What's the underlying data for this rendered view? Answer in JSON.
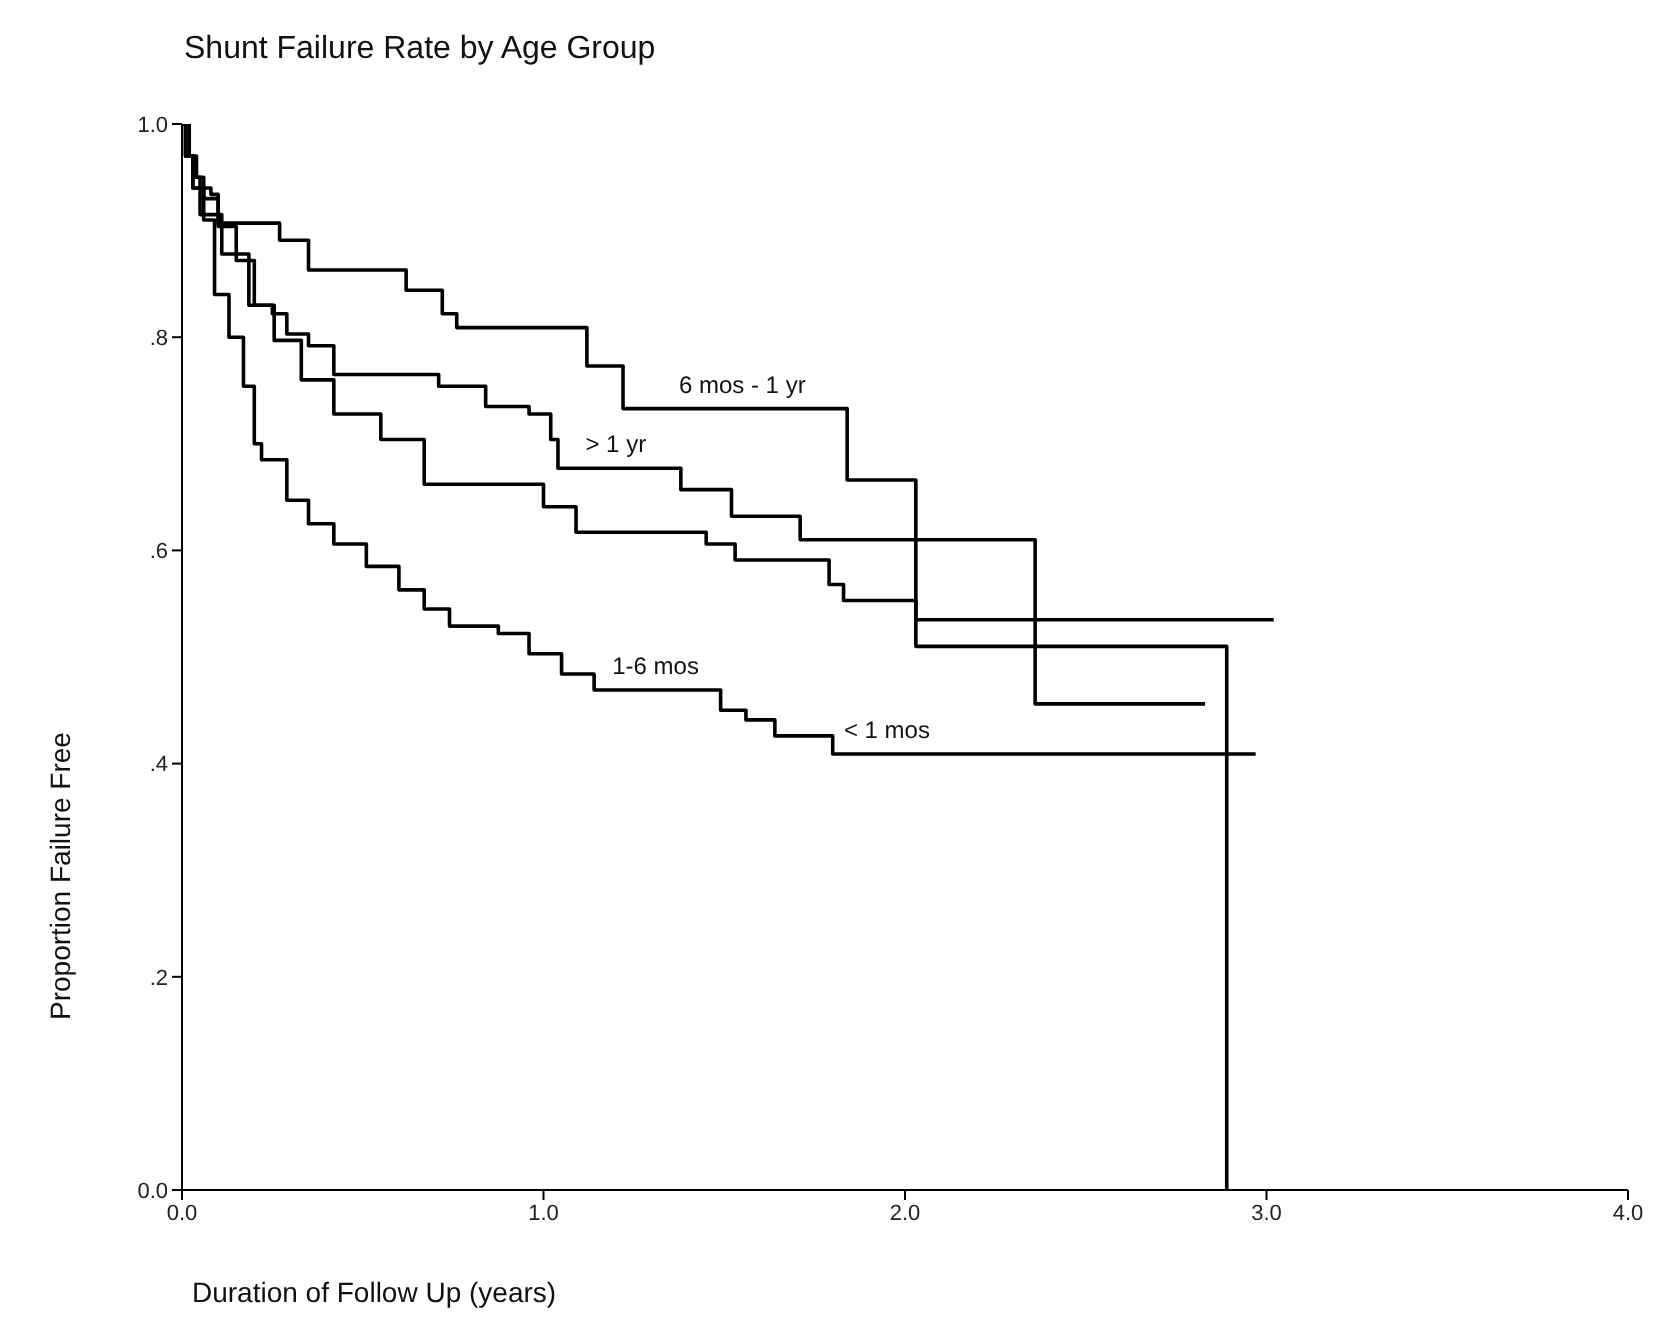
{
  "chart_data": {
    "type": "step",
    "title": "Shunt Failure Rate by Age Group",
    "xlabel": "Duration of Follow Up (years)",
    "ylabel": "Proportion Failure Free",
    "xlim": [
      0,
      4
    ],
    "xticks": [
      {
        "value": 0,
        "label": "0.0"
      },
      {
        "value": 1,
        "label": "1.0"
      },
      {
        "value": 2,
        "label": "2.0"
      },
      {
        "value": 3,
        "label": "3.0"
      },
      {
        "value": 4,
        "label": "4.0"
      }
    ],
    "ylim": [
      0,
      1
    ],
    "yticks": [
      {
        "value": 0,
        "label": "0.0"
      },
      {
        "value": 0.2,
        "label": ".2"
      },
      {
        "value": 0.4,
        "label": ".4"
      },
      {
        "value": 0.6,
        "label": ".6"
      },
      {
        "value": 0.8,
        "label": ".8"
      },
      {
        "value": 1,
        "label": "1.0"
      }
    ],
    "grid": false,
    "marker": "none",
    "line_style": "solid",
    "series": [
      {
        "color": "#000000",
        "x": [
          0,
          0.02,
          0.04,
          0.06,
          0.1,
          0.27,
          0.35,
          0.62,
          0.72,
          0.76,
          1.12,
          1.22,
          1.84,
          2.03,
          2.89
        ],
        "values": [
          1,
          0.97,
          0.95,
          0.93,
          0.907,
          0.891,
          0.863,
          0.844,
          0.822,
          0.809,
          0.773,
          0.733,
          0.666,
          0.51,
          0
        ]
      },
      {
        "color": "#000000",
        "x": [
          0,
          0.01,
          0.03,
          0.05,
          0.08,
          0.1,
          0.15,
          0.2,
          0.25,
          0.29,
          0.35,
          0.42,
          0.71,
          0.84,
          0.96,
          1.02,
          1.04,
          1.38,
          1.52,
          1.71,
          2.36,
          2.83
        ],
        "values": [
          1,
          0.97,
          0.95,
          0.94,
          0.934,
          0.904,
          0.872,
          0.83,
          0.822,
          0.803,
          0.792,
          0.765,
          0.754,
          0.735,
          0.728,
          0.704,
          0.677,
          0.657,
          0.632,
          0.61,
          0.456,
          0.456
        ]
      },
      {
        "color": "#000000",
        "x": [
          0,
          0.01,
          0.03,
          0.05,
          0.11,
          0.185,
          0.255,
          0.33,
          0.42,
          0.55,
          0.67,
          1.0,
          1.09,
          1.45,
          1.53,
          1.79,
          1.83,
          2.03,
          3.02
        ],
        "values": [
          1,
          0.97,
          0.94,
          0.915,
          0.878,
          0.83,
          0.797,
          0.76,
          0.728,
          0.704,
          0.662,
          0.641,
          0.617,
          0.606,
          0.591,
          0.568,
          0.553,
          0.535,
          0.535
        ]
      },
      {
        "color": "#000000",
        "x": [
          0,
          0.01,
          0.03,
          0.06,
          0.09,
          0.13,
          0.17,
          0.2,
          0.22,
          0.29,
          0.35,
          0.42,
          0.51,
          0.6,
          0.67,
          0.74,
          0.875,
          0.96,
          1.05,
          1.14,
          1.49,
          1.56,
          1.64,
          1.8,
          2.97
        ],
        "values": [
          1,
          0.97,
          0.94,
          0.91,
          0.84,
          0.8,
          0.754,
          0.7,
          0.685,
          0.647,
          0.625,
          0.606,
          0.585,
          0.563,
          0.545,
          0.529,
          0.522,
          0.503,
          0.484,
          0.469,
          0.45,
          0.441,
          0.426,
          0.409,
          0.409
        ]
      }
    ],
    "annotations": [
      {
        "text": "6 mos - 1 yr",
        "x": 1.55,
        "y": 0.733
      },
      {
        "text": "> 1 yr",
        "x": 1.2,
        "y": 0.677
      },
      {
        "text": "1-6 mos",
        "x": 1.31,
        "y": 0.469
      },
      {
        "text": "< 1 mos",
        "x": 1.95,
        "y": 0.409
      }
    ]
  }
}
